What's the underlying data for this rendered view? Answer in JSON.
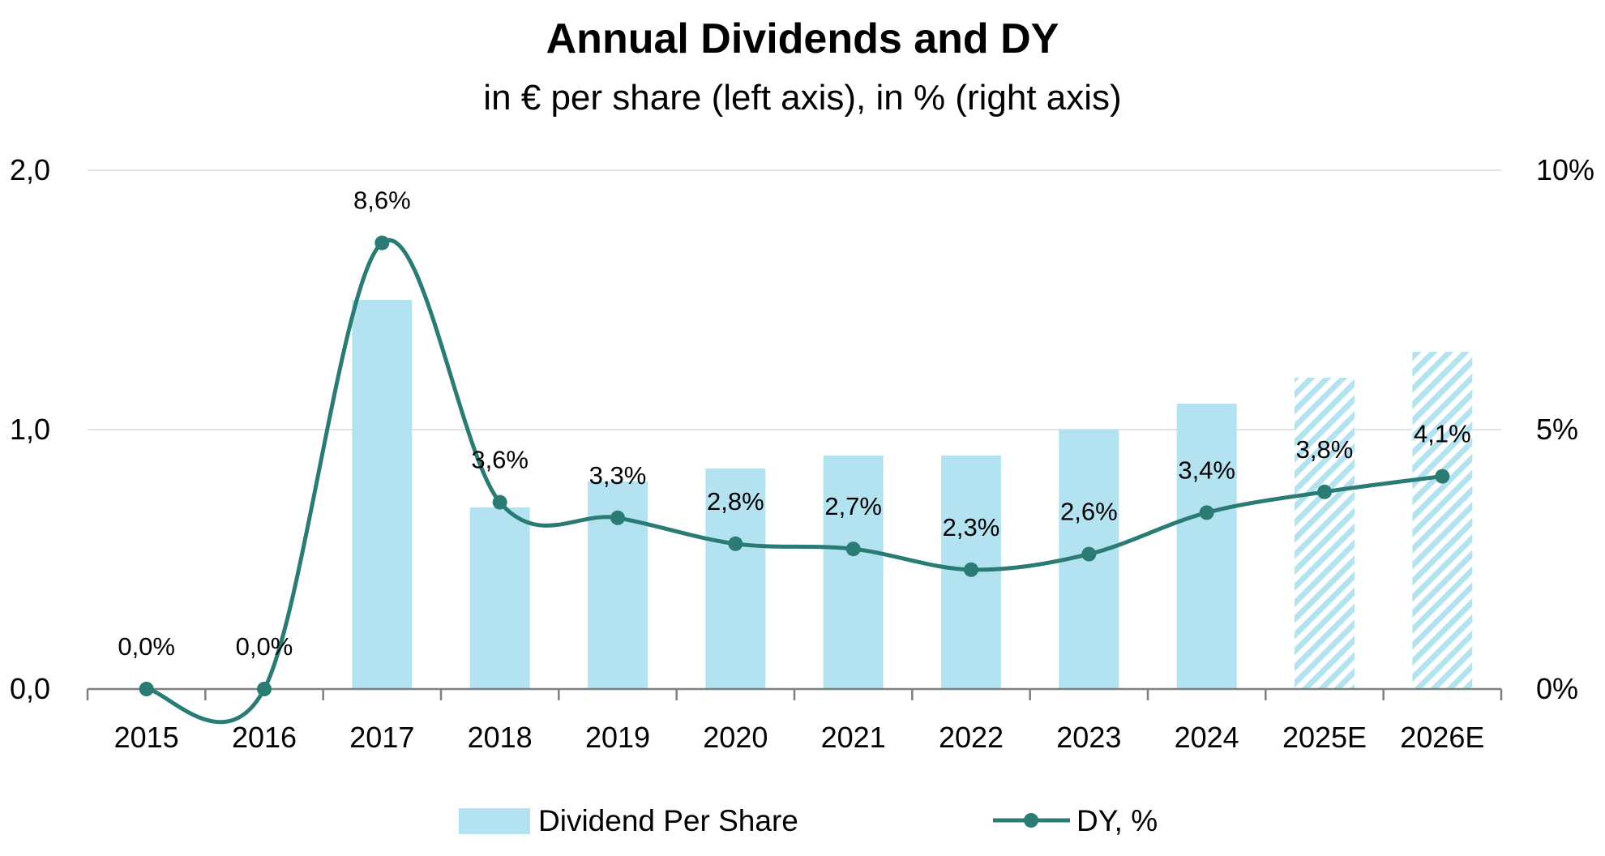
{
  "chart_data": {
    "type": "bar",
    "title": "Annual Dividends and DY",
    "subtitle": "in € per share (left axis), in % (right axis)",
    "categories": [
      "2015",
      "2016",
      "2017",
      "2018",
      "2019",
      "2020",
      "2021",
      "2022",
      "2023",
      "2024",
      "2025E",
      "2026E"
    ],
    "estimated": [
      false,
      false,
      false,
      false,
      false,
      false,
      false,
      false,
      false,
      false,
      true,
      true
    ],
    "series": [
      {
        "name": "Dividend Per Share",
        "type": "bar",
        "axis": "left",
        "color": "#b3e3f0",
        "values": [
          0,
          0,
          1.5,
          0.7,
          0.8,
          0.85,
          0.9,
          0.9,
          1.0,
          1.1,
          1.2,
          1.3
        ]
      },
      {
        "name": "DY, %",
        "type": "line",
        "axis": "right",
        "color": "#2a7b73",
        "values": [
          0.0,
          0.0,
          8.6,
          3.6,
          3.3,
          2.8,
          2.7,
          2.3,
          2.6,
          3.4,
          3.8,
          4.1
        ],
        "labels": [
          "0,0%",
          "0,0%",
          "8,6%",
          "3,6%",
          "3,3%",
          "2,8%",
          "2,7%",
          "2,3%",
          "2,6%",
          "3,4%",
          "3,8%",
          "4,1%"
        ]
      }
    ],
    "y_left": {
      "min": 0,
      "max": 2,
      "ticks": [
        0,
        1,
        2
      ],
      "tick_labels": [
        "0,0",
        "1,0",
        "2,0"
      ]
    },
    "y_right": {
      "min": 0,
      "max": 10,
      "ticks": [
        0,
        5,
        10
      ],
      "tick_labels": [
        "0%",
        "5%",
        "10%"
      ]
    },
    "grid": true,
    "legend_position": "bottom"
  }
}
